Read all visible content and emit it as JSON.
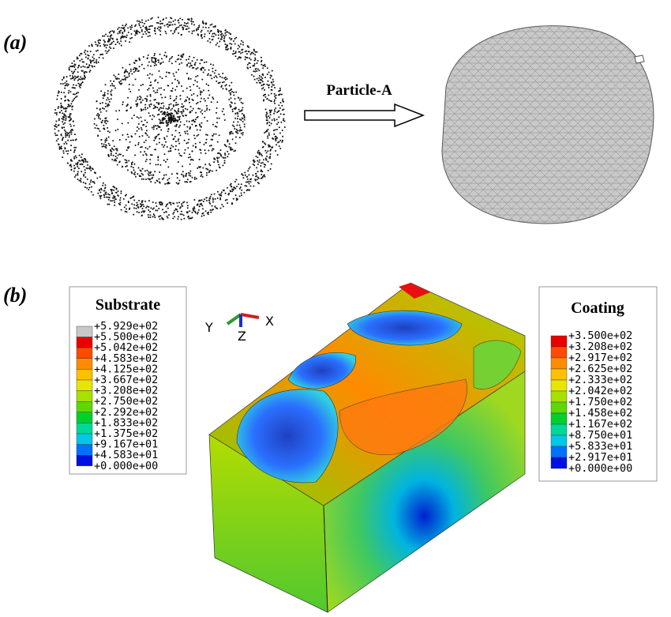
{
  "panel_a": {
    "label": "(a)",
    "arrow_label": "Particle-A"
  },
  "panel_b": {
    "label": "(b)",
    "axes": [
      "Y",
      "Z",
      "X"
    ],
    "substrate_legend": {
      "title": "Substrate",
      "labels": [
        "+5.929e+02",
        "+5.500e+02",
        "+5.042e+02",
        "+4.583e+02",
        "+4.125e+02",
        "+3.667e+02",
        "+3.208e+02",
        "+2.750e+02",
        "+2.292e+02",
        "+1.833e+02",
        "+1.375e+02",
        "+9.167e+01",
        "+4.583e+01",
        "+0.000e+00"
      ],
      "colors": [
        "#c8c8c8",
        "#e80000",
        "#ff4a00",
        "#ff8c00",
        "#ffc000",
        "#e6e600",
        "#a8e000",
        "#5ed800",
        "#00d02a",
        "#00d89a",
        "#00c8e6",
        "#0070ff",
        "#0010e0"
      ]
    },
    "coating_legend": {
      "title": "Coating",
      "labels": [
        "+3.500e+02",
        "+3.208e+02",
        "+2.917e+02",
        "+2.625e+02",
        "+2.333e+02",
        "+2.042e+02",
        "+1.750e+02",
        "+1.458e+02",
        "+1.167e+02",
        "+8.750e+01",
        "+5.833e+01",
        "+2.917e+01",
        "+0.000e+00"
      ],
      "colors": [
        "#e80000",
        "#ff4a00",
        "#ff8c00",
        "#ffc000",
        "#e6e600",
        "#a8e000",
        "#5ed800",
        "#00d02a",
        "#00d89a",
        "#00c8e6",
        "#0070ff",
        "#0010e0"
      ]
    }
  }
}
